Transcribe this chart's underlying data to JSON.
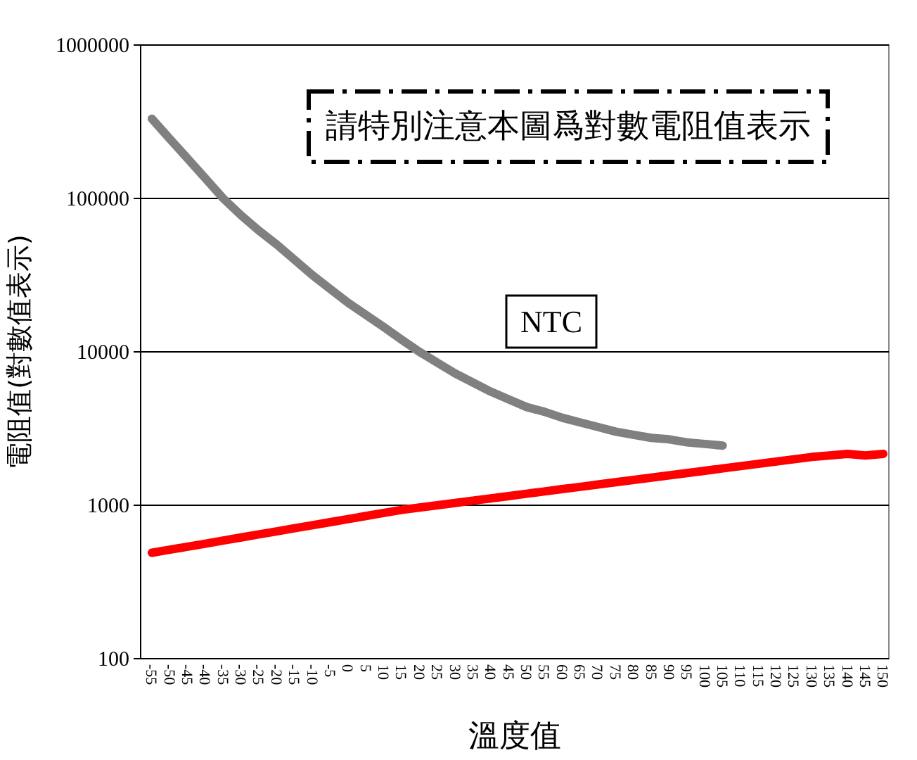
{
  "chart_data": {
    "type": "line",
    "xlabel": "溫度值",
    "ylabel": "電阻值(對數值表示)",
    "categories": [
      "-55",
      "-50",
      "-45",
      "-40",
      "-35",
      "-30",
      "-25",
      "-20",
      "-15",
      "-10",
      "-5",
      "0",
      "5",
      "10",
      "15",
      "20",
      "25",
      "30",
      "35",
      "40",
      "45",
      "50",
      "55",
      "60",
      "65",
      "70",
      "75",
      "80",
      "85",
      "90",
      "95",
      "100",
      "105",
      "110",
      "115",
      "120",
      "125",
      "130",
      "135",
      "140",
      "145",
      "150"
    ],
    "series": [
      {
        "name": "NTC",
        "color": "#808080",
        "values": [
          331000,
          245000,
          182000,
          135000,
          100000,
          77600,
          61700,
          50100,
          39800,
          31600,
          25700,
          20900,
          17400,
          14500,
          12000,
          10000,
          8510,
          7240,
          6310,
          5500,
          4900,
          4370,
          4070,
          3720,
          3470,
          3240,
          3020,
          2880,
          2750,
          2690,
          2570,
          2510,
          2450,
          null,
          null,
          null,
          null,
          null,
          null,
          null,
          null,
          null
        ]
      },
      {
        "color": "#ff0000",
        "values": [
          490,
          513,
          537,
          562,
          589,
          617,
          646,
          676,
          708,
          741,
          776,
          813,
          851,
          891,
          933,
          966,
          1000,
          1035,
          1072,
          1109,
          1148,
          1189,
          1230,
          1274,
          1318,
          1365,
          1413,
          1462,
          1514,
          1567,
          1622,
          1679,
          1738,
          1799,
          1862,
          1928,
          1995,
          2065,
          2113,
          2163,
          2113,
          2163
        ]
      }
    ],
    "ylim": [
      100,
      1000000
    ],
    "yticks": [
      100,
      1000,
      10000,
      100000,
      1000000
    ],
    "log": true,
    "grid": "y",
    "legend": false,
    "marker": "none",
    "line_style": "solid",
    "annotations": [
      "請特別注意本圖爲對數電阻值表示"
    ]
  }
}
